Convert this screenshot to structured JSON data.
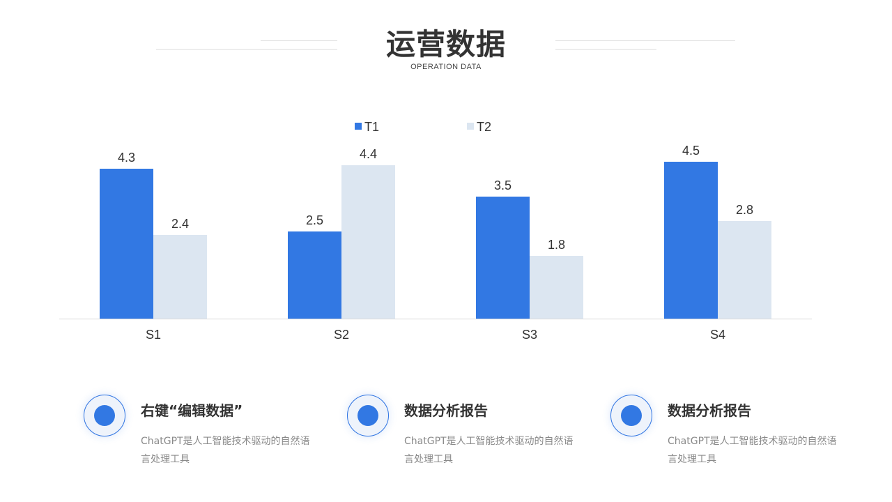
{
  "header": {
    "title": "运营数据",
    "subtitle": "OPERATION DATA"
  },
  "chart_data": {
    "type": "bar",
    "categories": [
      "S1",
      "S2",
      "S3",
      "S4"
    ],
    "series": [
      {
        "name": "T1",
        "values": [
          4.3,
          2.5,
          3.5,
          4.5
        ],
        "color": "#3278e3"
      },
      {
        "name": "T2",
        "values": [
          2.4,
          4.4,
          1.8,
          2.8
        ],
        "color": "#dce6f1"
      }
    ],
    "ylim": [
      0,
      5
    ],
    "grid": false,
    "legend": "top-center",
    "data_labels": true
  },
  "features": [
    {
      "title": "右键“编辑数据”",
      "desc": "ChatGPT是人工智能技术驱动的自然语言处理工具"
    },
    {
      "title": "数据分析报告",
      "desc": "ChatGPT是人工智能技术驱动的自然语言处理工具"
    },
    {
      "title": "数据分析报告",
      "desc": "ChatGPT是人工智能技术驱动的自然语言处理工具"
    }
  ],
  "colors": {
    "accent": "#3278e3",
    "secondary": "#dce6f1",
    "text": "#333333",
    "muted": "#8a8a8a"
  }
}
